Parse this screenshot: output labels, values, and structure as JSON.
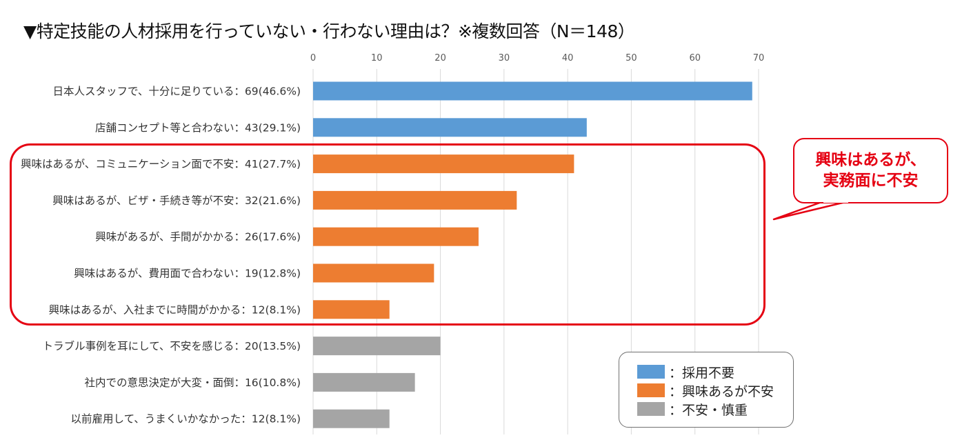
{
  "title": "▼特定技能の人材採用を行っていない・行わない理由は？※複数回答（N＝148）",
  "callout": {
    "line1": "興味はあるが、",
    "line2": "実務面に不安"
  },
  "legend": [
    {
      "label": "：採用不要",
      "color": "#5b9bd5"
    },
    {
      "label": "：興味あるが不安",
      "color": "#ed7d31"
    },
    {
      "label": "：不安・慎重",
      "color": "#a5a5a5"
    }
  ],
  "chart_data": {
    "type": "bar",
    "orientation": "horizontal",
    "xlim": [
      0,
      70
    ],
    "xticks": [
      0,
      10,
      20,
      30,
      40,
      50,
      60,
      70
    ],
    "grid": true,
    "categories": [
      "日本人スタッフで、十分に足りている：69(46.6%)",
      "店舗コンセプト等と合わない：43(29.1%)",
      "興味はあるが、コミュニケーション面で不安：41(27.7%)",
      "興味はあるが、ビザ・手続き等が不安：32(21.6%)",
      "興味があるが、手間がかかる：26(17.6%)",
      "興味はあるが、費用面で合わない：19(12.8%)",
      "興味はあるが、入社までに時間がかかる：12(8.1%)",
      "トラブル事例を耳にして、不安を感じる：20(13.5%)",
      "社内での意思決定が大変・面倒：16(10.8%)",
      "以前雇用して、うまくいかなかった：12(8.1%)"
    ],
    "values": [
      69,
      43,
      41,
      32,
      26,
      19,
      12,
      20,
      16,
      12
    ],
    "groups": [
      0,
      0,
      1,
      1,
      1,
      1,
      1,
      2,
      2,
      2
    ]
  }
}
